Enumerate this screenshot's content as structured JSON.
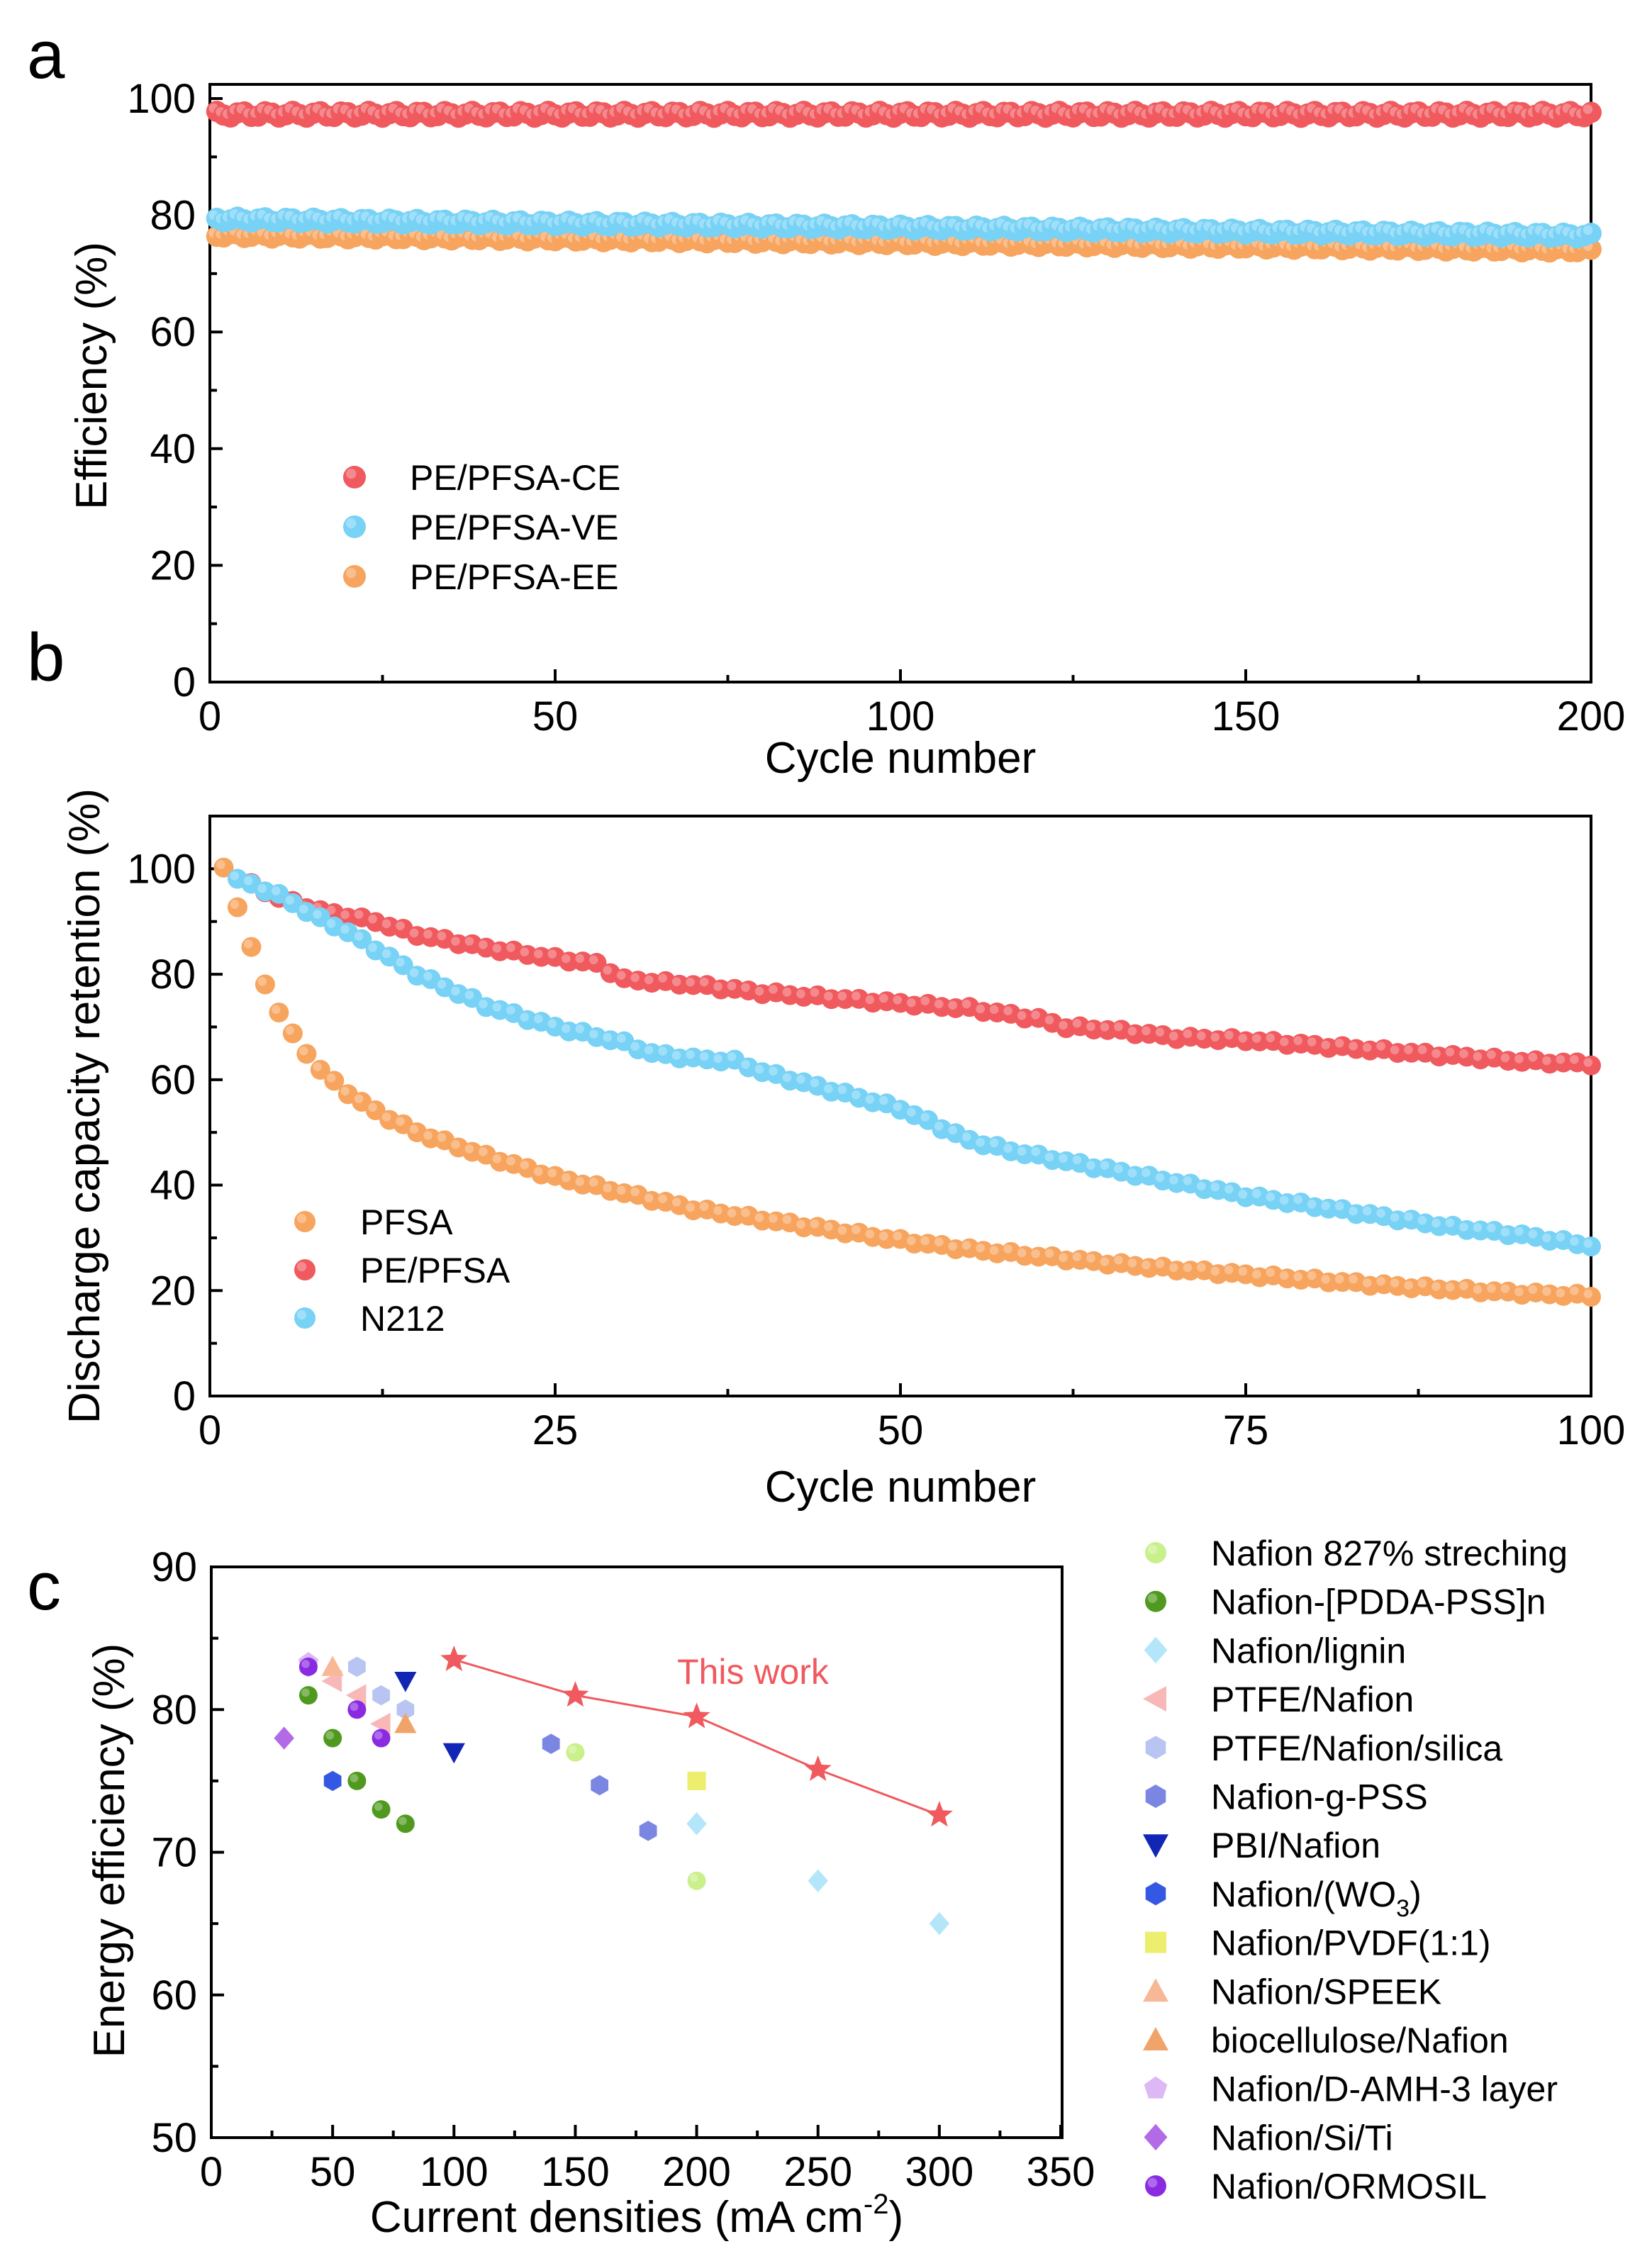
{
  "chart_data": [
    {
      "panel": "a",
      "type": "scatter",
      "xlabel": "Cycle number",
      "ylabel": "Efficiency (%)",
      "xlim": [
        0,
        200
      ],
      "ylim": [
        0,
        100
      ],
      "xticks": [
        0,
        50,
        100,
        150,
        200
      ],
      "yticks": [
        0,
        20,
        40,
        60,
        80,
        100
      ],
      "legend_position": "lower-left",
      "series": [
        {
          "name": "PE/PFSA-CE",
          "color": "#f0595d",
          "x_start": 1,
          "x_end": 200,
          "y_start": 97.3,
          "y_end": 97.3,
          "jitter": 0.5
        },
        {
          "name": "PE/PFSA-VE",
          "color": "#77d2f5",
          "x_start": 1,
          "x_end": 200,
          "y_start": 79.3,
          "y_end": 76.5,
          "jitter": 0.4
        },
        {
          "name": "PE/PFSA-EE",
          "color": "#f7a45e",
          "x_start": 1,
          "x_end": 200,
          "y_start": 76.6,
          "y_end": 74.0,
          "jitter": 0.4
        }
      ]
    },
    {
      "panel": "b",
      "type": "scatter",
      "xlabel": "Cycle number",
      "ylabel": "Discharge capacity retention (%)",
      "xlim": [
        0,
        100
      ],
      "ylim": [
        0,
        110
      ],
      "xticks": [
        0,
        25,
        50,
        75,
        100
      ],
      "yticks": [
        0,
        20,
        40,
        60,
        80,
        100
      ],
      "legend_position": "lower-left",
      "series": [
        {
          "name": "PFSA",
          "color": "#f7a45e",
          "cycles": [
            1,
            100
          ],
          "anchors": [
            [
              1,
              100
            ],
            [
              2,
              93
            ],
            [
              3,
              85
            ],
            [
              4,
              78
            ],
            [
              5,
              73
            ],
            [
              6,
              68.5
            ],
            [
              7,
              65
            ],
            [
              8,
              62
            ],
            [
              9,
              59.5
            ],
            [
              10,
              57.5
            ],
            [
              12,
              54
            ],
            [
              15,
              50
            ],
            [
              20,
              45.5
            ],
            [
              25,
              41.5
            ],
            [
              30,
              38.5
            ],
            [
              35,
              35.5
            ],
            [
              40,
              33.5
            ],
            [
              45,
              31.5
            ],
            [
              50,
              29.5
            ],
            [
              55,
              27.8
            ],
            [
              60,
              26.5
            ],
            [
              65,
              25.2
            ],
            [
              70,
              24
            ],
            [
              75,
              23
            ],
            [
              80,
              22
            ],
            [
              85,
              21
            ],
            [
              90,
              20.2
            ],
            [
              95,
              19.5
            ],
            [
              100,
              19
            ]
          ]
        },
        {
          "name": "PE/PFSA",
          "color": "#f0595d",
          "cycles": [
            3,
            100
          ],
          "anchors": [
            [
              3,
              97
            ],
            [
              5,
              94.5
            ],
            [
              8,
              92
            ],
            [
              10,
              91
            ],
            [
              12,
              90
            ],
            [
              15,
              87.5
            ],
            [
              18,
              86
            ],
            [
              20,
              85
            ],
            [
              25,
              83
            ],
            [
              28,
              82
            ],
            [
              30,
              79
            ],
            [
              35,
              78
            ],
            [
              40,
              76.5
            ],
            [
              45,
              75.5
            ],
            [
              50,
              74.5
            ],
            [
              55,
              73.5
            ],
            [
              60,
              71.5
            ],
            [
              62,
              70
            ],
            [
              65,
              69.5
            ],
            [
              70,
              68
            ],
            [
              75,
              67.5
            ],
            [
              80,
              66.5
            ],
            [
              85,
              65.5
            ],
            [
              90,
              64.5
            ],
            [
              95,
              63.5
            ],
            [
              100,
              63
            ]
          ]
        },
        {
          "name": "N212",
          "color": "#77d2f5",
          "cycles": [
            2,
            100
          ],
          "anchors": [
            [
              2,
              98
            ],
            [
              5,
              95
            ],
            [
              8,
              90.5
            ],
            [
              10,
              88
            ],
            [
              15,
              80
            ],
            [
              20,
              74
            ],
            [
              25,
              70
            ],
            [
              30,
              67
            ],
            [
              32,
              65
            ],
            [
              35,
              64
            ],
            [
              38,
              63.5
            ],
            [
              40,
              61.5
            ],
            [
              45,
              58
            ],
            [
              50,
              54.5
            ],
            [
              55,
              48.5
            ],
            [
              58,
              46.5
            ],
            [
              60,
              45.5
            ],
            [
              65,
              43
            ],
            [
              70,
              40.5
            ],
            [
              75,
              38
            ],
            [
              80,
              36
            ],
            [
              85,
              34
            ],
            [
              90,
              32
            ],
            [
              95,
              30.5
            ],
            [
              100,
              28.5
            ]
          ]
        }
      ]
    },
    {
      "panel": "c",
      "type": "scatter",
      "xlabel_main": "Current densities (mA cm",
      "xlabel_sup": "-2",
      "xlabel_tail": ")",
      "ylabel": "Energy efficiency (%)",
      "xlim": [
        0,
        350
      ],
      "ylim": [
        50,
        90
      ],
      "xticks": [
        0,
        50,
        100,
        150,
        200,
        250,
        300,
        350
      ],
      "yticks": [
        50,
        60,
        70,
        80,
        90
      ],
      "annotation": "This work",
      "this_work": {
        "color": "#f0595d",
        "x": [
          100,
          150,
          200,
          250,
          300
        ],
        "y": [
          83.5,
          81,
          79.5,
          75.8,
          72.6
        ]
      },
      "legend_position": "right-outside",
      "literature": [
        {
          "name": "Nafion 827% streching",
          "marker": "circle",
          "color": "#c9f08a",
          "points": [
            [
              150,
              77
            ],
            [
              200,
              68
            ]
          ]
        },
        {
          "name": "Nafion-[PDDA-PSS]n",
          "marker": "circle",
          "color": "#4f9a1e",
          "points": [
            [
              40,
              81
            ],
            [
              50,
              78
            ],
            [
              60,
              75
            ],
            [
              70,
              73
            ],
            [
              80,
              72
            ]
          ]
        },
        {
          "name": "Nafion/lignin",
          "marker": "diamond",
          "color": "#b4e6fa",
          "points": [
            [
              200,
              72
            ],
            [
              250,
              68
            ],
            [
              300,
              65
            ]
          ]
        },
        {
          "name": "PTFE/Nafion",
          "marker": "triangle-left",
          "color": "#f8b8b8",
          "points": [
            [
              50,
              82
            ],
            [
              60,
              81
            ],
            [
              70,
              79
            ]
          ]
        },
        {
          "name": "PTFE/Nafion/silica",
          "marker": "hexagon",
          "color": "#b8c4f2",
          "points": [
            [
              40,
              83
            ],
            [
              60,
              83
            ],
            [
              70,
              81
            ],
            [
              80,
              80
            ]
          ]
        },
        {
          "name": "Nafion-g-PSS",
          "marker": "hexagon",
          "color": "#7a86e2",
          "points": [
            [
              140,
              77.6
            ],
            [
              160,
              74.7
            ],
            [
              180,
              71.5
            ]
          ]
        },
        {
          "name": "PBI/Nafion",
          "marker": "triangle-down",
          "color": "#1226b5",
          "points": [
            [
              80,
              82
            ],
            [
              100,
              77
            ]
          ]
        },
        {
          "name": "Nafion/(WO3)",
          "name_main": "Nafion/(WO",
          "name_sub": "3",
          "name_tail": ")",
          "marker": "hexagon",
          "color": "#3558e4",
          "points": [
            [
              50,
              75
            ]
          ]
        },
        {
          "name": "Nafion/PVDF(1:1)",
          "marker": "square",
          "color": "#eded6e",
          "points": [
            [
              200,
              75
            ]
          ]
        },
        {
          "name": "Nafion/SPEEK",
          "marker": "triangle-up",
          "color": "#f8b896",
          "points": [
            [
              50,
              83
            ]
          ]
        },
        {
          "name": "biocellulose/Nafion",
          "marker": "triangle-up",
          "color": "#f0a46a",
          "points": [
            [
              80,
              79
            ]
          ]
        },
        {
          "name": "Nafion/D-AMH-3 layer",
          "marker": "pentagon",
          "color": "#dcb8f5",
          "points": [
            [
              40,
              83.3
            ]
          ]
        },
        {
          "name": "Nafion/Si/Ti",
          "marker": "diamond",
          "color": "#b36ae6",
          "points": [
            [
              30,
              78
            ]
          ]
        },
        {
          "name": "Nafion/ORMOSIL",
          "marker": "circle",
          "color": "#8a2be2",
          "points": [
            [
              40,
              83
            ],
            [
              60,
              80
            ],
            [
              70,
              78
            ]
          ]
        }
      ]
    }
  ],
  "panels": {
    "a": "a",
    "b": "b",
    "c": "c"
  }
}
